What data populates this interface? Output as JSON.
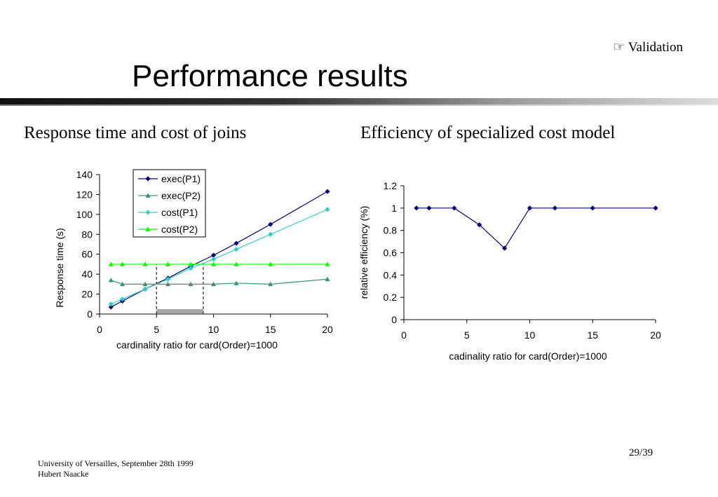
{
  "slide": {
    "section_tag": "Validation",
    "title": "Performance results",
    "left_heading": "Response time and cost of  joins",
    "right_heading": "Efficiency of specialized cost model",
    "footer_line1": "University of Versailles, September 28th 1999",
    "footer_line2": "Hubert Naacke",
    "page_number": "29/39",
    "section_icon": "pointing-hand-icon"
  },
  "chart_data": [
    {
      "type": "line",
      "title": "",
      "xlabel": "cardinality ratio for card(Order)=1000",
      "ylabel": "Response time (s)",
      "xlim": [
        0,
        20
      ],
      "ylim": [
        0,
        140
      ],
      "xticks": [
        0,
        5,
        10,
        15,
        20
      ],
      "yticks": [
        0,
        20,
        40,
        60,
        80,
        100,
        120,
        140
      ],
      "legend": "top-left-inside",
      "grid": false,
      "series": [
        {
          "name": "exec(P1)",
          "color": "#000080",
          "marker": "diamond",
          "x": [
            1,
            2,
            4,
            6,
            8,
            10,
            12,
            15,
            20
          ],
          "y": [
            7,
            13,
            25,
            36,
            48,
            59,
            71,
            90,
            123
          ]
        },
        {
          "name": "exec(P2)",
          "color": "#339966",
          "marker": "triangle",
          "x": [
            1,
            2,
            4,
            6,
            8,
            10,
            12,
            15,
            20
          ],
          "y": [
            34,
            30,
            30,
            30,
            30,
            30,
            31,
            30,
            35
          ]
        },
        {
          "name": "cost(P1)",
          "color": "#33cccc",
          "marker": "diamond",
          "x": [
            1,
            2,
            4,
            6,
            8,
            10,
            12,
            15,
            20
          ],
          "y": [
            10,
            15,
            25,
            35,
            46,
            55,
            65,
            80,
            105
          ]
        },
        {
          "name": "cost(P2)",
          "color": "#00ff00",
          "marker": "triangle",
          "x": [
            1,
            2,
            4,
            6,
            8,
            10,
            12,
            15,
            20
          ],
          "y": [
            50,
            50,
            50,
            50,
            50,
            50,
            50,
            50,
            50
          ]
        }
      ],
      "annotations": {
        "dashed_verticals_x": [
          5,
          9.1
        ],
        "shaded_interval_x": [
          5,
          9.1
        ]
      }
    },
    {
      "type": "line",
      "title": "",
      "xlabel": "cadinality ratio for card(Order)=1000",
      "ylabel": "relative efficiency (%)",
      "xlim": [
        0,
        20
      ],
      "ylim": [
        0,
        1.2
      ],
      "xticks": [
        0,
        5,
        10,
        15,
        20
      ],
      "yticks": [
        0,
        0.2,
        0.4,
        0.6,
        0.8,
        1,
        1.2
      ],
      "legend": "none",
      "grid": false,
      "series": [
        {
          "color": "#000080",
          "marker": "diamond",
          "x": [
            1,
            2,
            4,
            6,
            8,
            10,
            12,
            15,
            20
          ],
          "y": [
            1,
            1,
            1,
            0.85,
            0.64,
            1,
            1,
            1,
            1
          ]
        }
      ]
    }
  ]
}
